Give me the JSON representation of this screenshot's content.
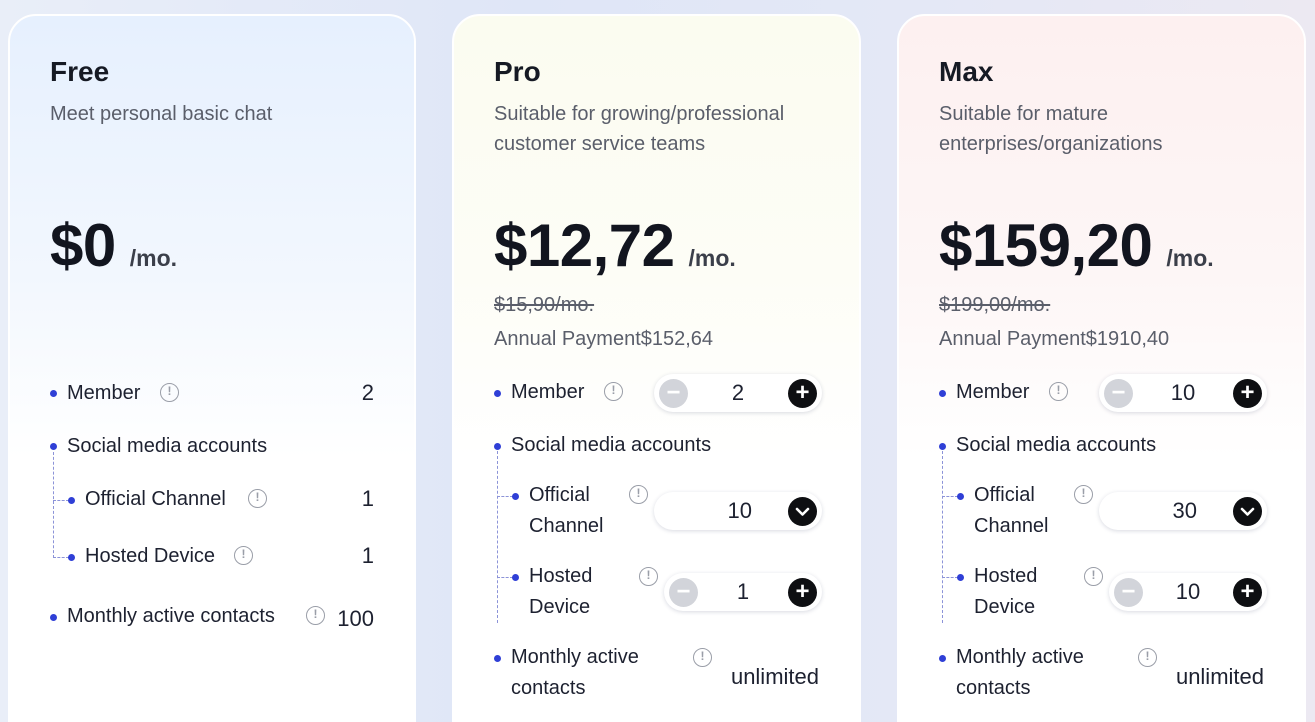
{
  "plans": {
    "free": {
      "name": "Free",
      "description": "Meet personal basic chat",
      "price": "$0",
      "unit": "/mo.",
      "features": {
        "member": {
          "label": "Member",
          "value": "2"
        },
        "social": {
          "label": "Social media accounts"
        },
        "official": {
          "label": "Official Channel",
          "value": "1"
        },
        "hosted": {
          "label": "Hosted Device",
          "value": "1"
        },
        "mac": {
          "label": "Monthly active contacts",
          "value": "100"
        }
      }
    },
    "pro": {
      "name": "Pro",
      "description": "Suitable for growing/professional customer service teams",
      "price": "$12,72",
      "unit": "/mo.",
      "original_price": "$15,90/mo.",
      "annual": "Annual Payment$152,64",
      "features": {
        "member": {
          "label": "Member",
          "value": "2"
        },
        "social": {
          "label": "Social media accounts"
        },
        "official": {
          "label_1": "Official",
          "label_2": "Channel",
          "value": "10"
        },
        "hosted": {
          "label_1": "Hosted",
          "label_2": "Device",
          "value": "1"
        },
        "mac": {
          "label_1": "Monthly active",
          "label_2": "contacts",
          "value": "unlimited"
        }
      }
    },
    "max": {
      "name": "Max",
      "description": "Suitable for mature enterprises/organizations",
      "price": "$159,20",
      "unit": "/mo.",
      "original_price": "$199,00/mo.",
      "annual": "Annual Payment$1910,40",
      "features": {
        "member": {
          "label": "Member",
          "value": "10"
        },
        "social": {
          "label": "Social media accounts"
        },
        "official": {
          "label_1": "Official",
          "label_2": "Channel",
          "value": "30"
        },
        "hosted": {
          "label_1": "Hosted",
          "label_2": "Device",
          "value": "10"
        },
        "mac": {
          "label_1": "Monthly active",
          "label_2": "contacts",
          "value": "unlimited"
        }
      }
    }
  },
  "icons": {
    "info": "!",
    "minus": "−",
    "plus": "+",
    "chevron": "⌄"
  },
  "colors": {
    "bullet": "#2f3fd6",
    "button_dark": "#0e0f12",
    "button_disabled": "#d2d4da"
  }
}
